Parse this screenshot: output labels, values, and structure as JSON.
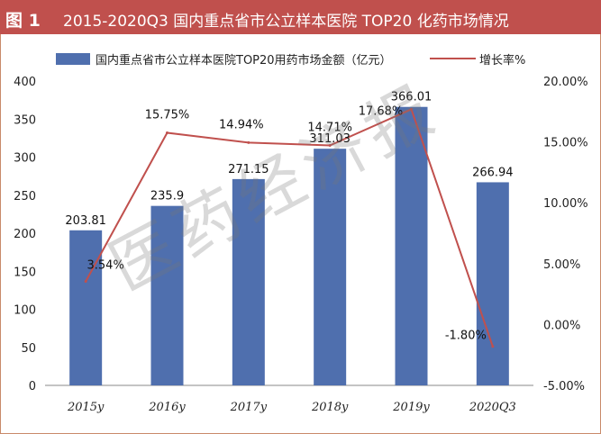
{
  "figure_label": "图 1",
  "figure_title": "2015-2020Q3 国内重点省市公立样本医院 TOP20 化药市场情况",
  "watermark": "医药经济报",
  "colors": {
    "bar": "#4f6fae",
    "line": "#c0504d",
    "header": "#c0504d"
  },
  "chart_data": {
    "type": "bar",
    "categories": [
      "2015y",
      "2016y",
      "2017y",
      "2018y",
      "2019y",
      "2020Q3"
    ],
    "series": [
      {
        "name": "国内重点省市公立样本医院TOP20用药市场金额（亿元）",
        "type": "bar",
        "axis": "left",
        "values": [
          203.81,
          235.9,
          271.15,
          311.03,
          366.01,
          266.94
        ],
        "labels": [
          "203.81",
          "235.9",
          "271.15",
          "311.03",
          "366.01",
          "266.94"
        ]
      },
      {
        "name": "增长率%",
        "type": "line",
        "axis": "right",
        "values": [
          3.54,
          15.75,
          14.94,
          14.71,
          17.68,
          -1.8
        ],
        "labels": [
          "3.54%",
          "15.75%",
          "14.94%",
          "14.71%",
          "17.68%",
          "-1.80%"
        ]
      }
    ],
    "y_left": {
      "min": 0,
      "max": 400,
      "ticks": [
        "0",
        "50",
        "100",
        "150",
        "200",
        "250",
        "300",
        "350",
        "400"
      ]
    },
    "y_right": {
      "min": -5,
      "max": 20,
      "ticks": [
        "-5.00%",
        "0.00%",
        "5.00%",
        "10.00%",
        "15.00%",
        "20.00%"
      ]
    },
    "legend": "top",
    "grid": false
  }
}
